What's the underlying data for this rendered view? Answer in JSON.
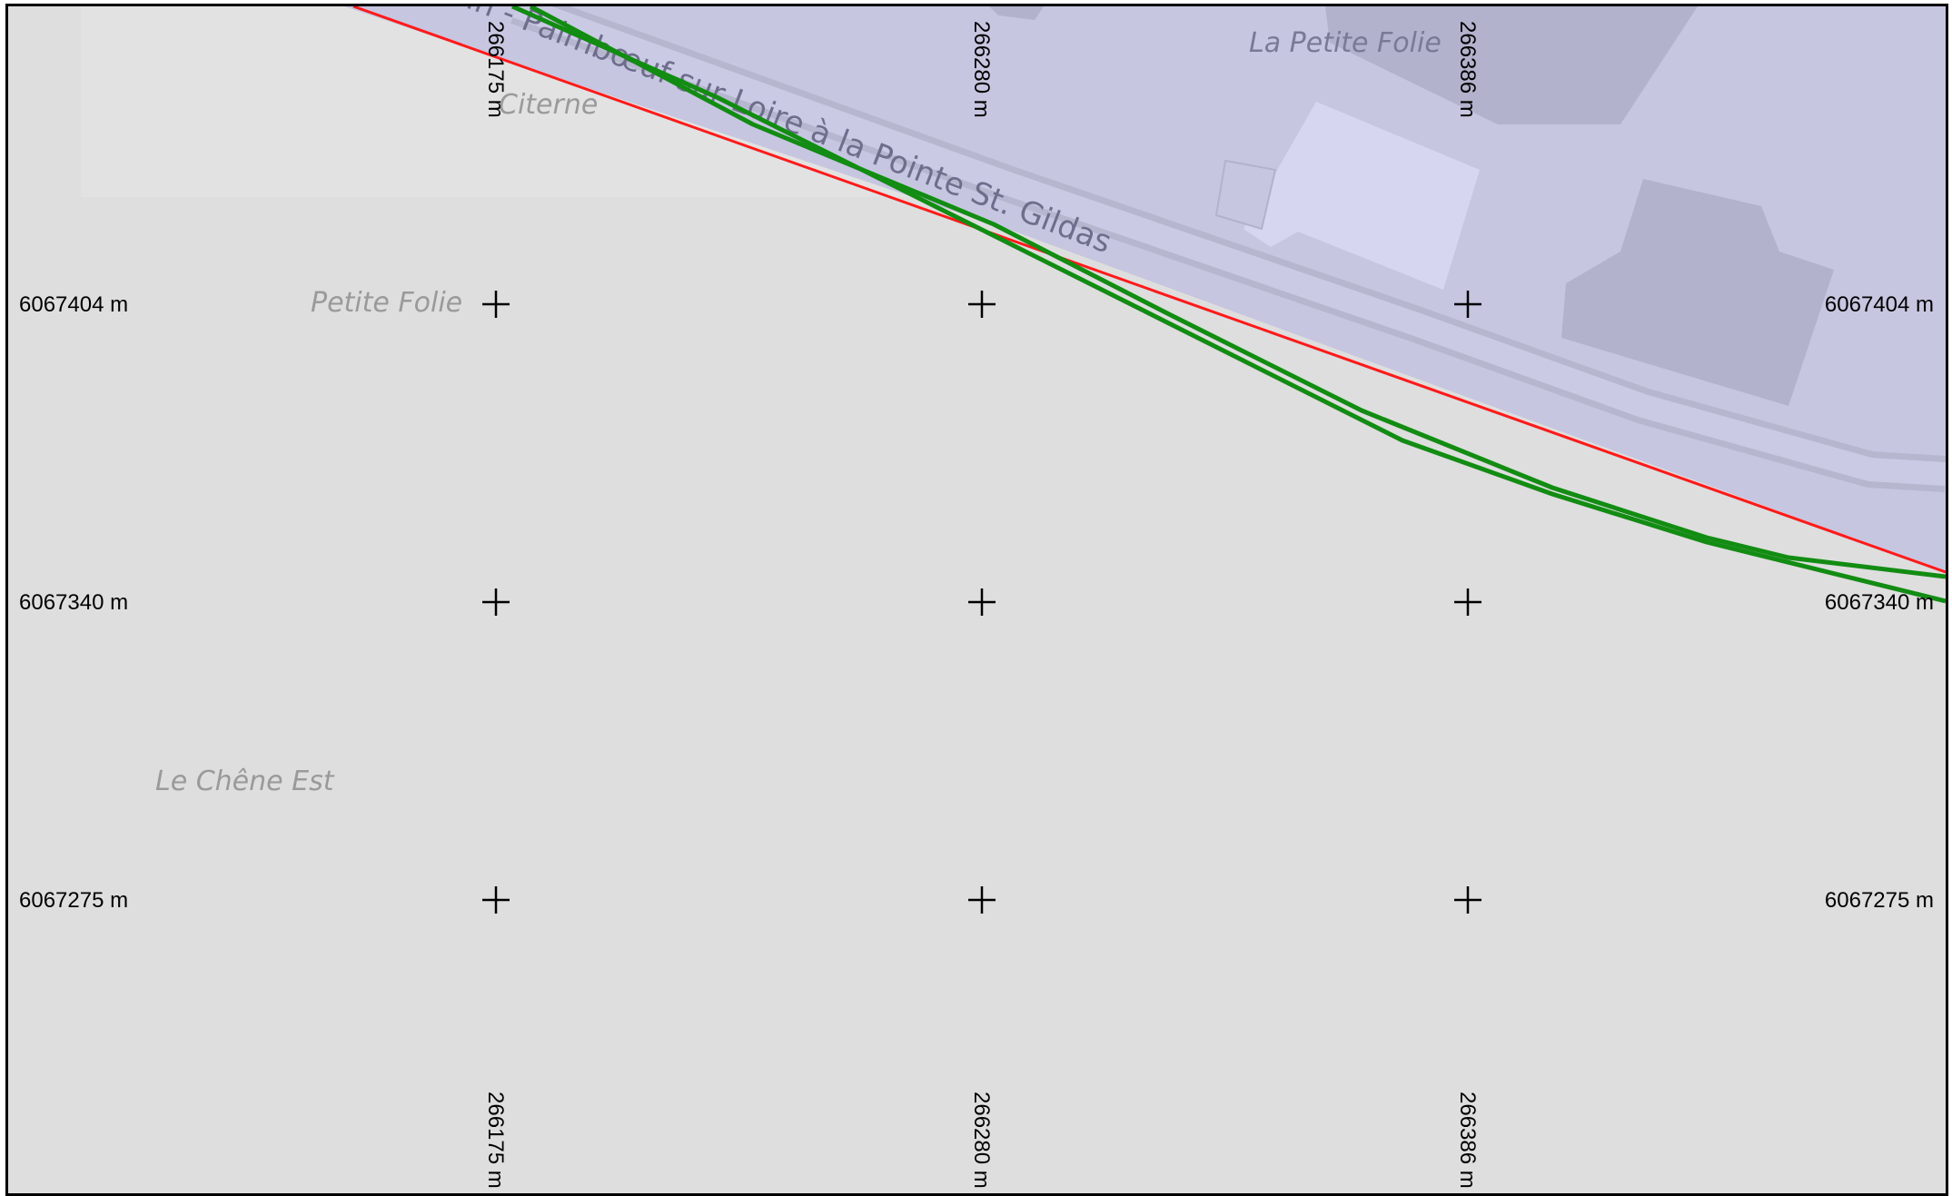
{
  "map": {
    "colors": {
      "land": "#dedede",
      "water": "#c6c6e0",
      "building_light": "#d6d6f0",
      "building_dark": "#b2b2cc",
      "road_outline": "#b6b6cf",
      "red_line": "#ff1a1a",
      "green_line": "#128c12",
      "frame": "#000000"
    },
    "labels": {
      "road": "Route de St-Brevin - Paimbœuf sur Loire à la Pointe St. Gildas",
      "la_petite_folie": "La Petite Folie",
      "citerne": "Citerne",
      "petite_folie": "Petite Folie",
      "le_chene_est": "Le Chêne Est"
    }
  },
  "grid": {
    "eastings": [
      "266175 m",
      "266280 m",
      "266386 m"
    ],
    "northings": [
      "6067404 m",
      "6067340 m",
      "6067275 m"
    ],
    "cross_icon": "plus-icon"
  }
}
